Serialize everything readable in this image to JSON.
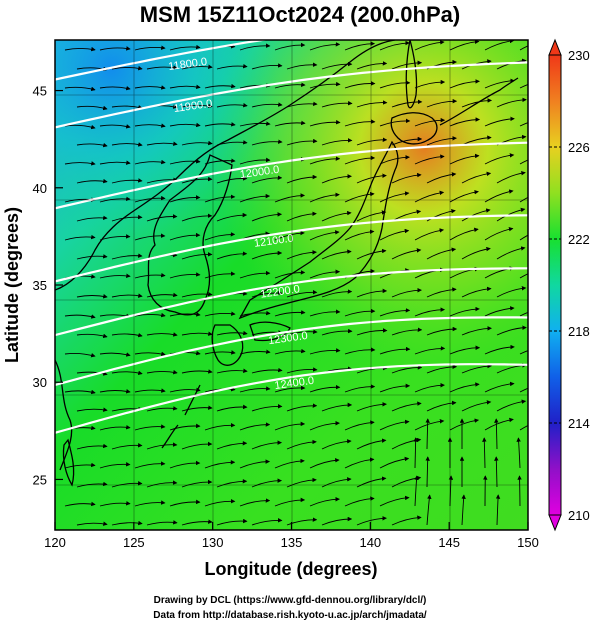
{
  "title": "MSM 15Z11Oct2024 (200.0hPa)",
  "x_axis": {
    "label": "Longitude (degrees)",
    "range": [
      120,
      150
    ],
    "ticks": [
      "120",
      "125",
      "130",
      "135",
      "140",
      "145",
      "150"
    ]
  },
  "y_axis": {
    "label": "Latitude  (degrees)",
    "range": [
      22.4,
      47.6
    ],
    "ticks": [
      "25",
      "30",
      "35",
      "40",
      "45"
    ]
  },
  "colorbar": {
    "range": [
      210,
      230
    ],
    "ticks": [
      "210",
      "214",
      "218",
      "222",
      "226",
      "230"
    ],
    "colors": [
      "#e800e0",
      "#7a10c8",
      "#2030d8",
      "#0aa0f0",
      "#10d8c0",
      "#18e030",
      "#7ce020",
      "#d8e020",
      "#f0a020",
      "#f05020"
    ]
  },
  "contours": [
    {
      "label": "11800.0",
      "lat": 46.0
    },
    {
      "label": "11900.0",
      "lat": 43.6
    },
    {
      "label": "12000.0",
      "lat": 39.5
    },
    {
      "label": "12100.0",
      "lat": 35.8
    },
    {
      "label": "12200.0",
      "lat": 33.1
    },
    {
      "label": "12300.0",
      "lat": 30.6
    },
    {
      "label": "12400.0",
      "lat": 28.2
    }
  ],
  "credits": [
    "Drawing by DCL (https://www.gfd-dennou.org/library/dcl/)",
    "Data from http://database.rish.kyoto-u.ac.jp/arch/jmadata/"
  ]
}
